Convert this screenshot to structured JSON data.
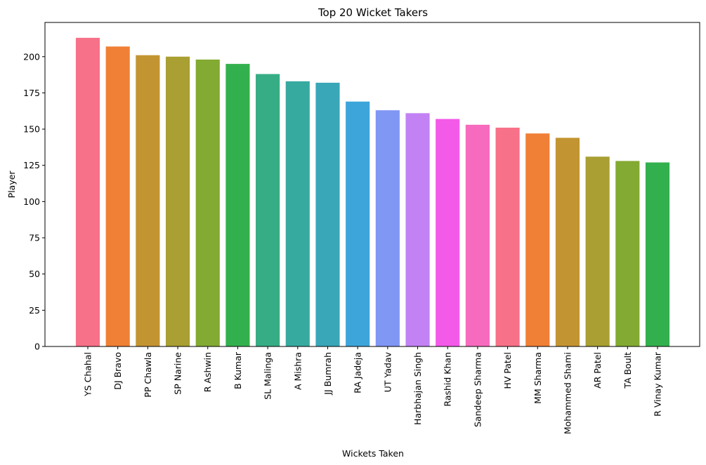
{
  "chart_data": {
    "type": "bar",
    "title": "Top 20 Wicket Takers",
    "xlabel": "Wickets Taken",
    "ylabel": "Player",
    "ylim": [
      0,
      223.6
    ],
    "yticks": [
      0,
      25,
      50,
      75,
      100,
      125,
      150,
      175,
      200
    ],
    "grid": false,
    "categories": [
      "YS Chahal",
      "DJ Bravo",
      "PP Chawla",
      "SP Narine",
      "R Ashwin",
      "B Kumar",
      "SL Malinga",
      "A Mishra",
      "JJ Bumrah",
      "RA Jadeja",
      "UT Yadav",
      "Harbhajan Singh",
      "Rashid Khan",
      "Sandeep Sharma",
      "HV Patel",
      "MM Sharma",
      "Mohammed Shami",
      "AR Patel",
      "TA Boult",
      "R Vinay Kumar"
    ],
    "values": [
      213,
      207,
      201,
      200,
      198,
      195,
      188,
      183,
      182,
      169,
      163,
      161,
      157,
      153,
      151,
      147,
      144,
      131,
      128,
      127
    ],
    "colors": [
      "#f77189",
      "#f08035",
      "#c39532",
      "#a99f32",
      "#83aa32",
      "#33b04e",
      "#36ad85",
      "#37aaa0",
      "#39a7b7",
      "#3ea5da",
      "#8197f4",
      "#c282f4",
      "#f45ae8",
      "#f66bbd",
      "#f77189",
      "#f08035",
      "#c39532",
      "#a99f32",
      "#83aa32",
      "#33b04e"
    ]
  }
}
